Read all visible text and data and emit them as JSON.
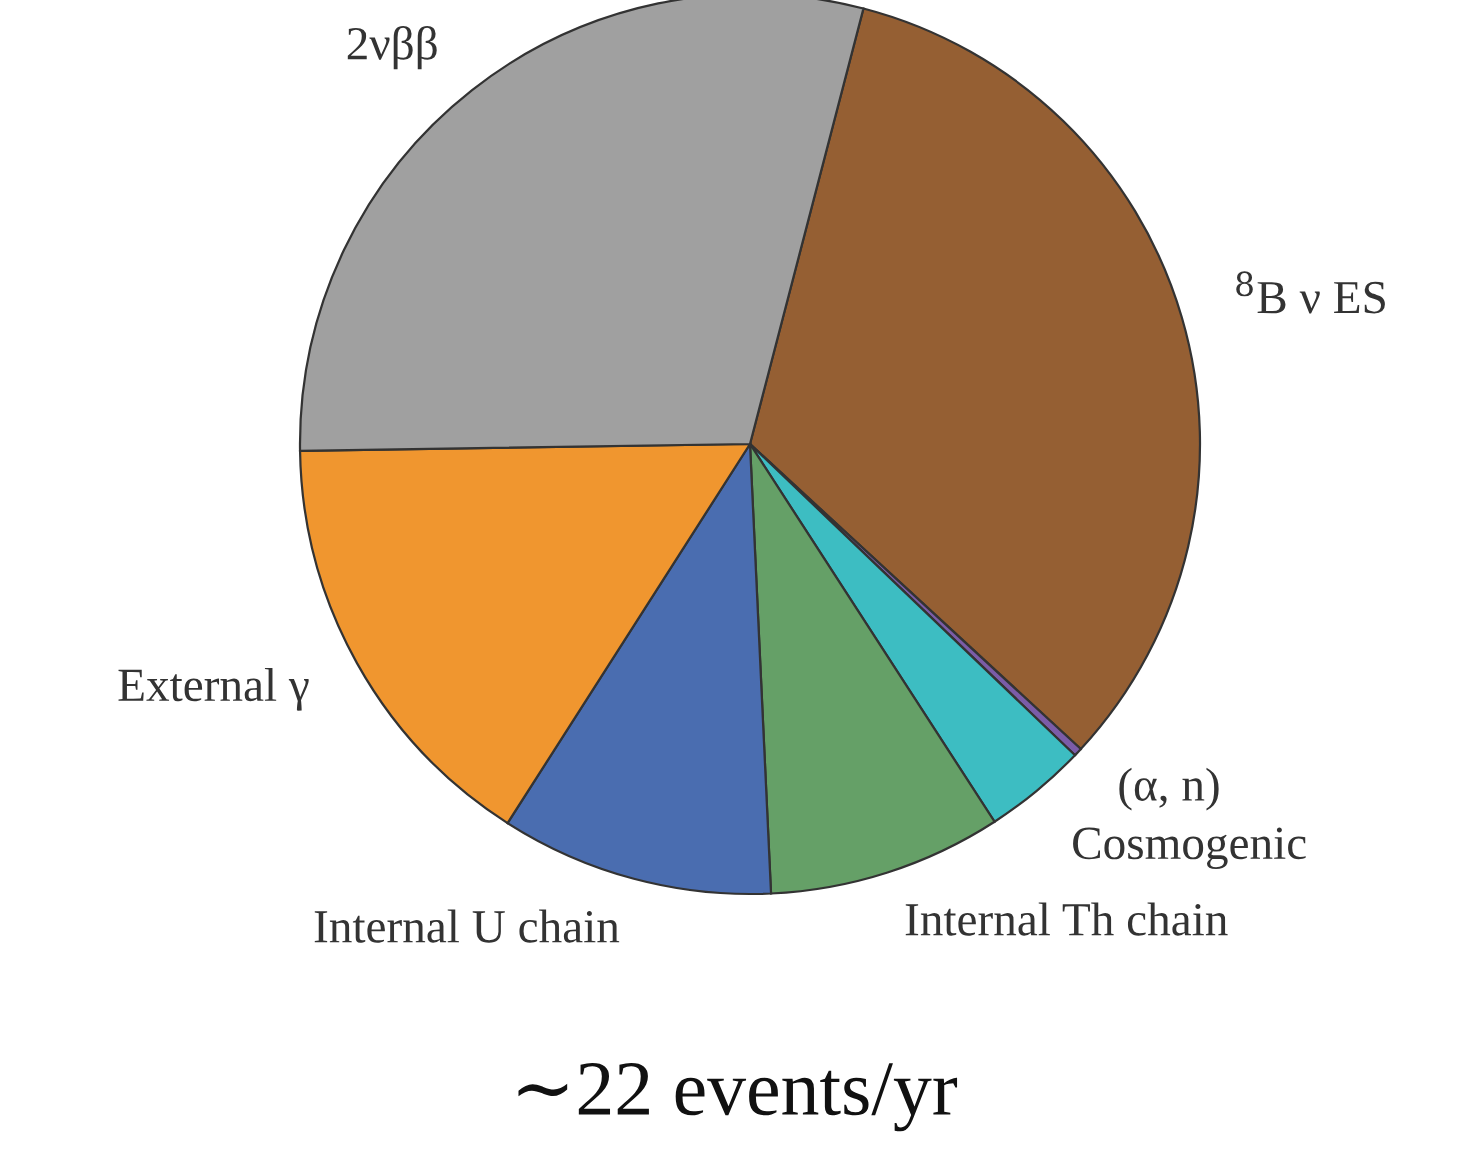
{
  "chart_data": {
    "type": "pie",
    "title": "∼22 events/yr",
    "categories": [
      "$^{8}$B ν ES",
      "(α, n)",
      "Cosmogenic",
      "Internal Th chain",
      "Internal U chain",
      "External γ",
      "2νββ"
    ],
    "values": [
      32.8,
      0.3,
      3.7,
      8.4,
      9.8,
      15.7,
      29.3
    ],
    "colors": [
      "#955f33",
      "#7b5ca8",
      "#3dbdc2",
      "#65a067",
      "#4a6db0",
      "#f0962f",
      "#a0a0a0"
    ],
    "legend": false
  }
}
